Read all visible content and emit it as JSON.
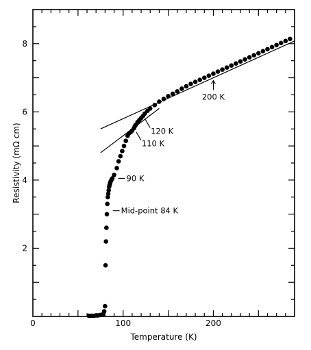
{
  "chart_data": {
    "type": "scatter",
    "xlabel": "Temperature  (K)",
    "ylabel": "Resistivity  (mΩ cm)",
    "xlim": [
      0,
      290
    ],
    "ylim": [
      0,
      9
    ],
    "xticks": [
      0,
      100,
      200
    ],
    "xtick_labels": [
      "0",
      "100",
      "200"
    ],
    "yticks": [
      2,
      4,
      6,
      8
    ],
    "ytick_labels": [
      "2",
      "4",
      "6",
      "8"
    ],
    "grid": false,
    "legend": "none",
    "series": [
      {
        "x": [
          62,
          64,
          66,
          68,
          70,
          72,
          74,
          76,
          78,
          79,
          80,
          80.5,
          81,
          81.5,
          82,
          82.5,
          83,
          83.5,
          84,
          84.5,
          85,
          85.5,
          86,
          87,
          88,
          90,
          93,
          95,
          97,
          99,
          101,
          103,
          105,
          107,
          109,
          110,
          112,
          113,
          114,
          116,
          118,
          120,
          122,
          124,
          127,
          130,
          135,
          140,
          145,
          150,
          155,
          160,
          165,
          170,
          175,
          180,
          185,
          190,
          195,
          200,
          205,
          210,
          215,
          220,
          225,
          230,
          235,
          240,
          245,
          250,
          255,
          260,
          265,
          270,
          275,
          280,
          285
        ],
        "y": [
          0.02,
          0.02,
          0.02,
          0.02,
          0.03,
          0.03,
          0.04,
          0.05,
          0.06,
          0.15,
          0.3,
          1.5,
          2.2,
          2.6,
          3.0,
          3.3,
          3.5,
          3.6,
          3.7,
          3.8,
          3.85,
          3.9,
          3.95,
          4.0,
          4.05,
          4.15,
          4.35,
          4.55,
          4.7,
          4.85,
          5.0,
          5.15,
          5.3,
          5.38,
          5.42,
          5.45,
          5.52,
          5.58,
          5.62,
          5.7,
          5.76,
          5.82,
          5.88,
          5.95,
          6.03,
          6.1,
          6.2,
          6.3,
          6.38,
          6.46,
          6.53,
          6.6,
          6.68,
          6.75,
          6.82,
          6.88,
          6.94,
          7.0,
          7.06,
          7.12,
          7.18,
          7.24,
          7.3,
          7.36,
          7.42,
          7.48,
          7.54,
          7.6,
          7.66,
          7.72,
          7.78,
          7.84,
          7.9,
          7.96,
          8.02,
          8.08,
          8.14
        ]
      }
    ],
    "reference_lines": [
      {
        "from": [
          75,
          5.5
        ],
        "to": [
          290,
          8.08
        ]
      },
      {
        "from": [
          75,
          4.8
        ],
        "to": [
          140,
          6.1
        ]
      }
    ],
    "annotations": [
      {
        "text": "200 K",
        "x": 200,
        "y": 7.0
      },
      {
        "text": "120 K",
        "x": 120,
        "y": 5.82
      },
      {
        "text": "110 K",
        "x": 110,
        "y": 5.45
      },
      {
        "text": "90 K",
        "x": 90,
        "y": 4.05
      },
      {
        "text": "Mid-point 84 K",
        "x": 84,
        "y": 3.1
      }
    ]
  }
}
